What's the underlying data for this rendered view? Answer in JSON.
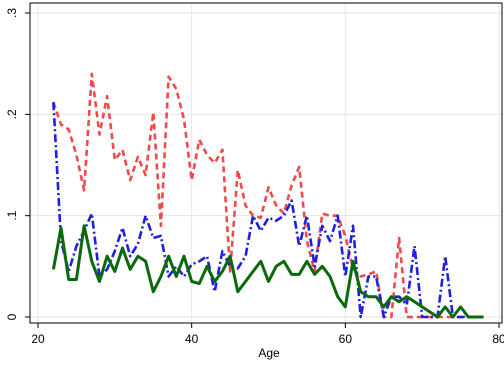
{
  "chart_data": {
    "type": "line",
    "title": "",
    "xlabel": "Age",
    "ylabel": "",
    "xlim": [
      20,
      80
    ],
    "ylim": [
      0,
      0.3
    ],
    "grid": true,
    "legend": "none",
    "x_ticks": [
      20,
      40,
      60,
      80
    ],
    "y_ticks": [
      0,
      0.1,
      0.2,
      0.3
    ],
    "x_tick_labels": [
      "20",
      "40",
      "60",
      "80"
    ],
    "y_tick_labels": [
      "0",
      ".1",
      ".2",
      ".3"
    ],
    "series": [
      {
        "color": "#f04a4a",
        "line_style": "dashed",
        "x": [
          22,
          23,
          24,
          25,
          26,
          27,
          28,
          29,
          30,
          31,
          32,
          33,
          34,
          35,
          36,
          37,
          38,
          39,
          40,
          41,
          42,
          43,
          44,
          45,
          46,
          47,
          48,
          49,
          50,
          51,
          52,
          53,
          54,
          55,
          56,
          57,
          58,
          59,
          60,
          61,
          62,
          63,
          64,
          65,
          66,
          67,
          68,
          69,
          70,
          71,
          72,
          73,
          74,
          75,
          76,
          77,
          78
        ],
        "values": [
          0.212,
          0.19,
          0.185,
          0.16,
          0.125,
          0.24,
          0.18,
          0.218,
          0.155,
          0.165,
          0.135,
          0.158,
          0.14,
          0.202,
          0.09,
          0.237,
          0.225,
          0.195,
          0.135,
          0.175,
          0.16,
          0.152,
          0.165,
          0.045,
          0.145,
          0.11,
          0.1,
          0.098,
          0.128,
          0.11,
          0.102,
          0.13,
          0.148,
          0.075,
          0.045,
          0.102,
          0.1,
          0.1,
          0.08,
          0.048,
          0.04,
          0.042,
          0.045,
          0.0,
          0.0,
          0.078,
          0.0,
          0.0,
          0.0,
          0.0,
          0.0,
          0.0,
          0.0,
          0.0,
          0.0,
          0.0,
          0.0
        ]
      },
      {
        "color": "#1f1fe0",
        "line_style": "dashdot",
        "x": [
          22,
          23,
          24,
          25,
          26,
          27,
          28,
          29,
          30,
          31,
          32,
          33,
          34,
          35,
          36,
          37,
          38,
          39,
          40,
          41,
          42,
          43,
          44,
          45,
          46,
          47,
          48,
          49,
          50,
          51,
          52,
          53,
          54,
          55,
          56,
          57,
          58,
          59,
          60,
          61,
          62,
          63,
          64,
          65,
          66,
          67,
          68,
          69,
          70,
          71,
          72,
          73,
          74,
          75,
          76,
          77,
          78
        ],
        "values": [
          0.212,
          0.075,
          0.045,
          0.07,
          0.085,
          0.102,
          0.04,
          0.047,
          0.065,
          0.088,
          0.06,
          0.072,
          0.1,
          0.078,
          0.08,
          0.04,
          0.05,
          0.04,
          0.052,
          0.055,
          0.06,
          0.025,
          0.065,
          0.05,
          0.048,
          0.06,
          0.1,
          0.085,
          0.098,
          0.095,
          0.1,
          0.115,
          0.07,
          0.1,
          0.05,
          0.09,
          0.075,
          0.1,
          0.04,
          0.09,
          0.0,
          0.04,
          0.04,
          0.0,
          0.02,
          0.02,
          0.012,
          0.07,
          0.0,
          0.0,
          0.0,
          0.06,
          0.0,
          0.0,
          0.0,
          0.0,
          0.0
        ]
      },
      {
        "color": "#0a6a0a",
        "line_style": "solid",
        "x": [
          22,
          23,
          24,
          25,
          26,
          27,
          28,
          29,
          30,
          31,
          32,
          33,
          34,
          35,
          36,
          37,
          38,
          39,
          40,
          41,
          42,
          43,
          44,
          45,
          46,
          47,
          48,
          49,
          50,
          51,
          52,
          53,
          54,
          55,
          56,
          57,
          58,
          59,
          60,
          61,
          62,
          63,
          64,
          65,
          66,
          67,
          68,
          69,
          70,
          71,
          72,
          73,
          74,
          75,
          76,
          77,
          78
        ],
        "values": [
          0.047,
          0.088,
          0.037,
          0.037,
          0.09,
          0.055,
          0.035,
          0.06,
          0.045,
          0.068,
          0.047,
          0.06,
          0.055,
          0.025,
          0.04,
          0.06,
          0.04,
          0.06,
          0.035,
          0.033,
          0.05,
          0.035,
          0.045,
          0.06,
          0.025,
          0.035,
          0.045,
          0.055,
          0.035,
          0.05,
          0.055,
          0.042,
          0.042,
          0.055,
          0.042,
          0.05,
          0.04,
          0.02,
          0.01,
          0.055,
          0.025,
          0.02,
          0.02,
          0.01,
          0.02,
          0.015,
          0.02,
          0.015,
          0.01,
          0.005,
          0.0,
          0.01,
          0.0,
          0.01,
          0.0,
          0.0,
          0.0
        ]
      }
    ]
  }
}
